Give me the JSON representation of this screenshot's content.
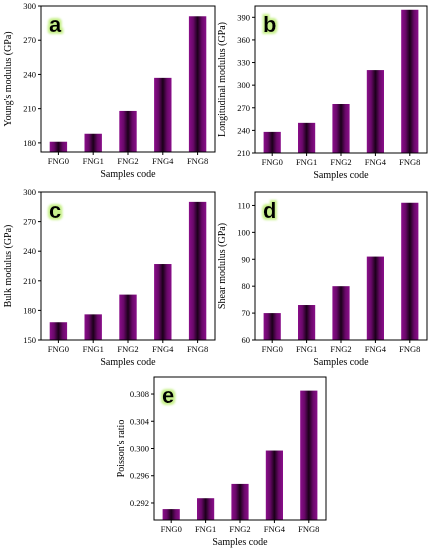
{
  "chart_data": [
    {
      "panel": "a",
      "type": "bar",
      "categories": [
        "FNG0",
        "FNG1",
        "FNG2",
        "FNG4",
        "FNG8"
      ],
      "values": [
        181,
        188,
        208,
        237,
        291
      ],
      "xlabel": "Samples code",
      "ylabel": "Young's modulus (GPa)",
      "ylim": [
        172,
        300
      ],
      "yticks": [
        "180",
        "210",
        "240",
        "270",
        "300"
      ],
      "ytick_values": [
        180,
        210,
        240,
        270,
        300
      ]
    },
    {
      "panel": "b",
      "type": "bar",
      "categories": [
        "FNG0",
        "FNG1",
        "FNG2",
        "FNG4",
        "FNG8"
      ],
      "values": [
        238,
        250,
        275,
        320,
        400
      ],
      "xlabel": "Samples code",
      "ylabel": "Longitudinal modulus (GPa)",
      "ylim": [
        210,
        405
      ],
      "yticks": [
        "210",
        "240",
        "270",
        "300",
        "330",
        "360",
        "390"
      ],
      "ytick_values": [
        210,
        240,
        270,
        300,
        330,
        360,
        390
      ]
    },
    {
      "panel": "c",
      "type": "bar",
      "categories": [
        "FNG0",
        "FNG1",
        "FNG2",
        "FNG4",
        "FNG8"
      ],
      "values": [
        168,
        176,
        196,
        227,
        290
      ],
      "xlabel": "Samples code",
      "ylabel": "Bulk modulus (GPa)",
      "ylim": [
        150,
        300
      ],
      "yticks": [
        "150",
        "180",
        "210",
        "240",
        "270",
        "300"
      ],
      "ytick_values": [
        150,
        180,
        210,
        240,
        270,
        300
      ]
    },
    {
      "panel": "d",
      "type": "bar",
      "categories": [
        "FNG0",
        "FNG1",
        "FNG2",
        "FNG4",
        "FNG8"
      ],
      "values": [
        70,
        73,
        80,
        91,
        111
      ],
      "xlabel": "Samples code",
      "ylabel": "Shear modulus (GPa)",
      "ylim": [
        60,
        115
      ],
      "yticks": [
        "60",
        "70",
        "80",
        "90",
        "100",
        "110"
      ],
      "ytick_values": [
        60,
        70,
        80,
        90,
        100,
        110
      ]
    },
    {
      "panel": "e",
      "type": "bar",
      "categories": [
        "FNG0",
        "FNG1",
        "FNG2",
        "FNG4",
        "FNG8"
      ],
      "values": [
        0.2911,
        0.2927,
        0.2948,
        0.2997,
        0.3085
      ],
      "xlabel": "Samples code",
      "ylabel": "Poisson's ratio",
      "ylim": [
        0.2895,
        0.3105
      ],
      "yticks": [
        "0.292",
        "0.296",
        "0.300",
        "0.304",
        "0.308"
      ],
      "ytick_values": [
        0.292,
        0.296,
        0.3,
        0.304,
        0.308
      ]
    }
  ],
  "colors": {
    "bar_edge": "#7a0a7a",
    "bar_dark": "#1a0018",
    "letter_glow": "#c8f08c"
  }
}
